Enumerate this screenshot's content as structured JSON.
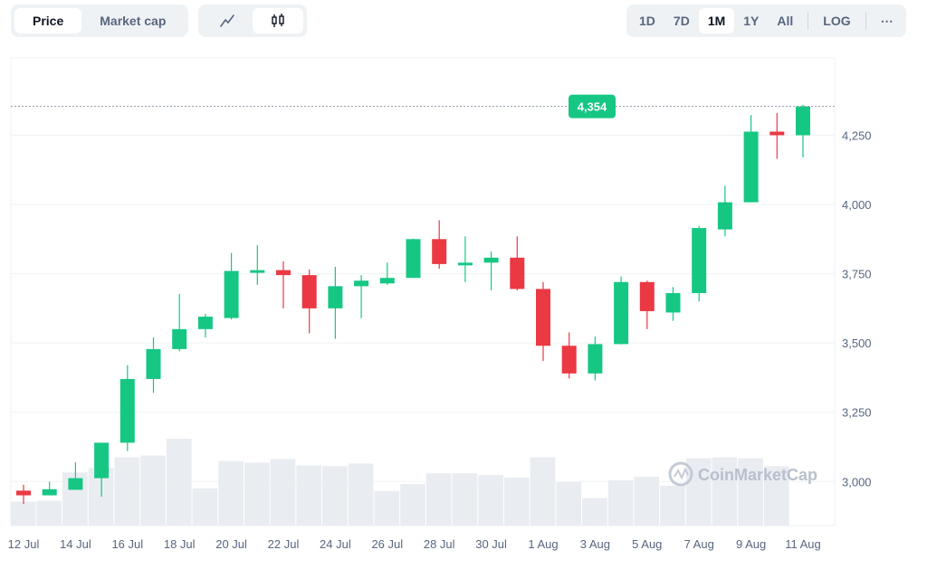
{
  "toolbar": {
    "type_tabs": [
      {
        "label": "Price",
        "active": true
      },
      {
        "label": "Market cap",
        "active": false
      }
    ],
    "chart_tabs": [
      {
        "icon": "line-chart-icon",
        "active": false
      },
      {
        "icon": "candlestick-icon",
        "active": true
      }
    ],
    "range_tabs": [
      {
        "label": "1D",
        "active": false
      },
      {
        "label": "7D",
        "active": false
      },
      {
        "label": "1M",
        "active": true
      },
      {
        "label": "1Y",
        "active": false
      },
      {
        "label": "All",
        "active": false
      }
    ],
    "log_label": "LOG",
    "more_label": "⋯"
  },
  "watermark": "CoinMarketCap",
  "colors": {
    "up": "#16c784",
    "down": "#ea3943",
    "volume": "#e9edf2",
    "grid": "#eff2f5"
  },
  "chart_data": {
    "type": "candlestick",
    "current_price": 4354,
    "current_price_label": "4,354",
    "y_ticks": [
      3000,
      3250,
      3500,
      3750,
      4000,
      4250
    ],
    "y_tick_labels": [
      "3,000",
      "3,250",
      "3,500",
      "3,750",
      "4,000",
      "4,250"
    ],
    "ylim": [
      2880,
      4490
    ],
    "x_tick_labels": [
      "12 Jul",
      "14 Jul",
      "16 Jul",
      "18 Jul",
      "20 Jul",
      "22 Jul",
      "24 Jul",
      "26 Jul",
      "28 Jul",
      "30 Jul",
      "1 Aug",
      "3 Aug",
      "5 Aug",
      "7 Aug",
      "9 Aug",
      "11 Aug"
    ],
    "dates": [
      "12 Jul",
      "13 Jul",
      "14 Jul",
      "15 Jul",
      "16 Jul",
      "17 Jul",
      "18 Jul",
      "19 Jul",
      "20 Jul",
      "21 Jul",
      "22 Jul",
      "23 Jul",
      "24 Jul",
      "25 Jul",
      "26 Jul",
      "27 Jul",
      "28 Jul",
      "29 Jul",
      "30 Jul",
      "31 Jul",
      "1 Aug",
      "2 Aug",
      "3 Aug",
      "4 Aug",
      "5 Aug",
      "6 Aug",
      "7 Aug",
      "8 Aug",
      "9 Aug",
      "10 Aug",
      "11 Aug"
    ],
    "open": [
      2967,
      2950,
      2970,
      3012,
      3140,
      3370,
      3478,
      3550,
      3590,
      3760,
      3763,
      3745,
      3625,
      3705,
      3715,
      3735,
      3875,
      3788,
      3790,
      3808,
      3695,
      3490,
      3390,
      3496,
      3720,
      3610,
      3680,
      3910,
      4008,
      4263,
      4250
    ],
    "close": [
      2950,
      2972,
      3012,
      3140,
      3370,
      3478,
      3550,
      3595,
      3760,
      3763,
      3745,
      3625,
      3705,
      3725,
      3735,
      3875,
      3785,
      3790,
      3808,
      3695,
      3490,
      3390,
      3496,
      3720,
      3615,
      3680,
      3915,
      4008,
      4263,
      4250,
      4354
    ],
    "high": [
      2988,
      2999,
      3070,
      3140,
      3420,
      3520,
      3677,
      3605,
      3825,
      3853,
      3795,
      3765,
      3775,
      3745,
      3790,
      3877,
      3943,
      3885,
      3830,
      3885,
      3720,
      3538,
      3523,
      3740,
      3725,
      3702,
      3923,
      4068,
      4323,
      4330,
      4360
    ],
    "low": [
      2919,
      2950,
      2970,
      2945,
      3110,
      3320,
      3470,
      3520,
      3585,
      3710,
      3625,
      3535,
      3515,
      3590,
      3710,
      3735,
      3768,
      3720,
      3690,
      3690,
      3435,
      3372,
      3365,
      3495,
      3550,
      3580,
      3650,
      3885,
      4008,
      4165,
      4170
    ],
    "volume": [
      27,
      28,
      60,
      65,
      77,
      79,
      98,
      42,
      73,
      71,
      75,
      68,
      67,
      70,
      39,
      47,
      59,
      59,
      57,
      54,
      77,
      49,
      31,
      51,
      55,
      45,
      76,
      77,
      76,
      67,
      0
    ],
    "volume_max": 100
  }
}
